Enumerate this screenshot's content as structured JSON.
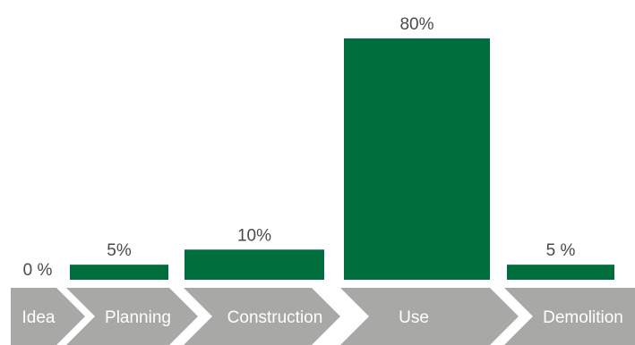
{
  "chart_data": {
    "type": "bar",
    "title": "",
    "xlabel": "",
    "ylabel": "",
    "ylim": [
      0,
      80
    ],
    "grid": false,
    "categories": [
      "Idea",
      "Planning",
      "Construction",
      "Use",
      "Demolition"
    ],
    "values": [
      0,
      5,
      10,
      80,
      5
    ],
    "value_labels": [
      "0 %",
      "5%",
      "10%",
      "80%",
      "5 %"
    ],
    "colors": {
      "bar": "#006e3c",
      "arrow": "#a8a8a6",
      "value_text": "#4a4a4a",
      "phase_text": "#ffffff"
    }
  }
}
